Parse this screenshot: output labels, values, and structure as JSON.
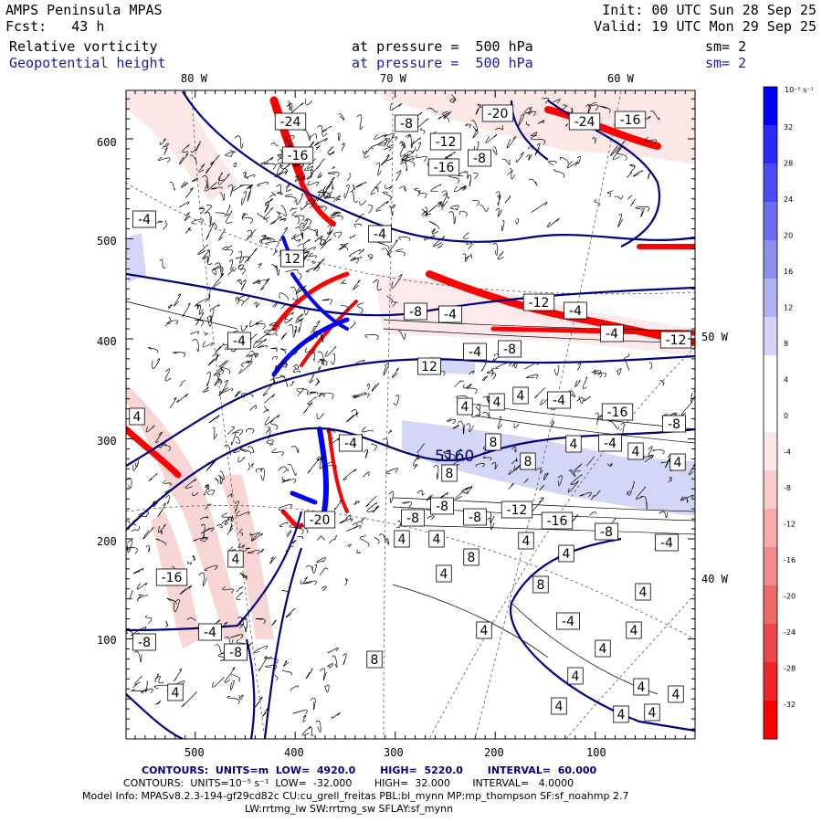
{
  "header": {
    "model": "AMPS Peninsula MPAS",
    "forecast": "Fcst:   43 h",
    "init": "Init: 00 UTC Sun 28 Sep 25",
    "valid": "Valid: 19 UTC Mon 29 Sep 25",
    "field1": {
      "name": "Relative vorticity",
      "level": "at pressure =  500 hPa",
      "sm": "sm= 2"
    },
    "field2": {
      "name": "Geopotential height",
      "level": "at pressure =  500 hPa",
      "sm": "sm= 2"
    }
  },
  "map": {
    "lon_labels_top": [
      "80 W",
      "70 W",
      "60 W"
    ],
    "lon_labels_right": [
      "50 W",
      "40 W"
    ],
    "y_ticks": [
      "600",
      "500",
      "400",
      "300",
      "200",
      "100"
    ],
    "x_ticks": [
      "500",
      "400",
      "300",
      "200",
      "100"
    ],
    "height_label": "5160",
    "vort_labels": [
      "-24",
      "-16",
      "-8",
      "-12",
      "-20",
      "-24",
      "-16",
      "-16",
      "-8",
      "-4",
      "-4",
      "12",
      "-8",
      "-4",
      "-12",
      "-4",
      "-4",
      "-8",
      "-12",
      "-4",
      "-4",
      "12",
      "4",
      "4",
      "4",
      "-4",
      "-16",
      "-8",
      "4",
      "-4",
      "8",
      "8",
      "4",
      "-4",
      "4",
      "4",
      "8",
      "-8",
      "-12",
      "-16",
      "-8",
      "-8",
      "-4",
      "-8",
      "4",
      "4",
      "8",
      "4",
      "4",
      "8",
      "4",
      "-4",
      "4",
      "4",
      "4",
      "4",
      "4",
      "4",
      "4",
      "4",
      "-16",
      "-4",
      "-8",
      "-8",
      "4",
      "8",
      "-20",
      "4",
      "4",
      "4"
    ],
    "colors": {
      "vort_positive": "#0000ff",
      "vort_negative": "#ff0000",
      "height_contour": "#000080"
    }
  },
  "colorbar": {
    "unit": "10⁻⁵ s⁻¹",
    "levels": [
      32,
      28,
      24,
      20,
      16,
      12,
      8,
      4,
      0,
      -4,
      -8,
      -12,
      -16,
      -20,
      -24,
      -28,
      -32
    ],
    "colors": [
      "#0000ff",
      "#2a2afc",
      "#4c4cf6",
      "#6d6df1",
      "#8e8eec",
      "#b0b0f3",
      "#d4d4fb",
      "#ffffff",
      "#ffffff",
      "#fde8e8",
      "#fbcccc",
      "#f7aaaa",
      "#f38a8a",
      "#ef6868",
      "#ed4646",
      "#f02424",
      "#ff0000"
    ]
  },
  "footer": {
    "line1": "CONTOURS:  UNITS=m  LOW=  4920.0       HIGH=  5220.0       INTERVAL=  60.000",
    "line2": "CONTOURS:  UNITS=10⁻⁵ s⁻¹  LOW=  -32.000       HIGH=  32.000       INTERVAL=   4.0000",
    "line3": "Model Info: MPASv8.2.3-194-gf29cd82c CU:cu_grell_freitas PBL:bl_mynn MP:mp_thompson SF:sf_noahmp 2.7",
    "line4": "LW:rrtmg_lw SW:rrtmg_sw SFLAY:sf_mynn"
  }
}
